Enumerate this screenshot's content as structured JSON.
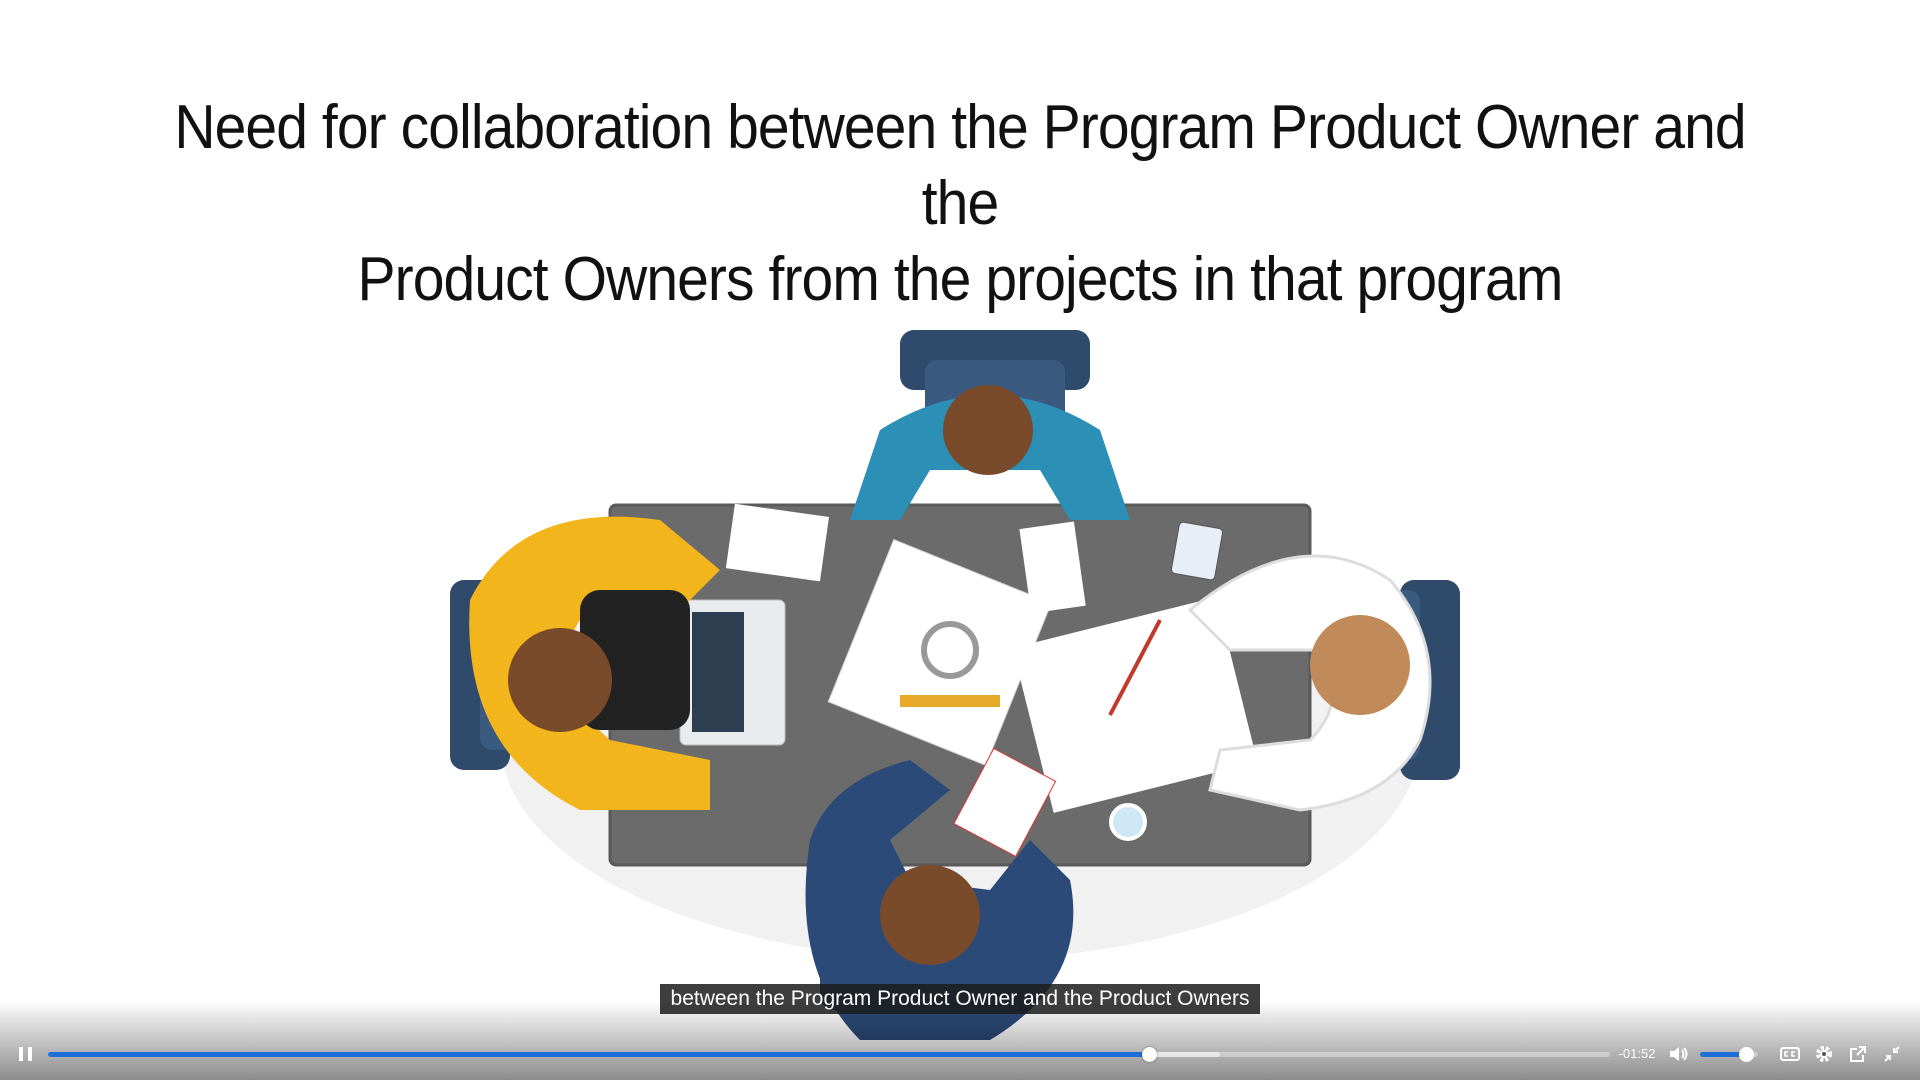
{
  "slide": {
    "title_line1": "Need for collaboration between the Program Product Owner and the",
    "title_line2": "Product Owners from the projects in that program"
  },
  "caption": {
    "text": "between the Program Product Owner and the Product Owners"
  },
  "player": {
    "state": "playing",
    "progress_fraction": 0.705,
    "buffered_fraction": 0.75,
    "time_remaining": "-01:52",
    "volume_fraction": 0.8,
    "accent_color": "#1e6fd6",
    "icons": {
      "play_pause": "pause-icon",
      "volume": "volume-icon",
      "captions": "closed-captions-icon",
      "settings": "gear-icon",
      "popout": "external-link-icon",
      "fullscreen": "exit-fullscreen-icon"
    }
  }
}
